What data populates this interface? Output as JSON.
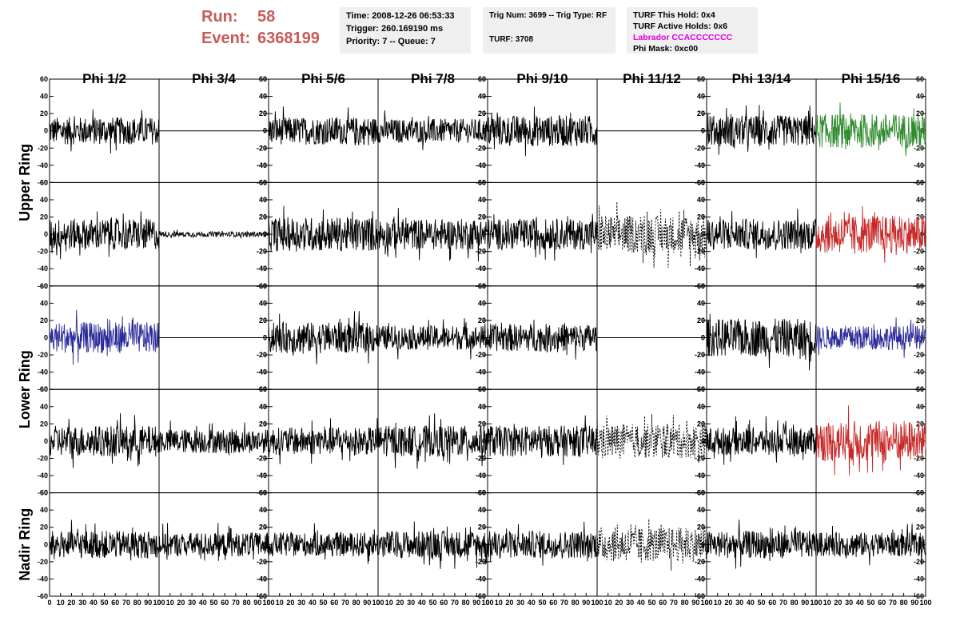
{
  "header": {
    "run_label": "Run:",
    "run_value": "58",
    "event_label": "Event:",
    "event_value": "6368199"
  },
  "info_time": {
    "time": "Time: 2008-12-26 06:53:33",
    "trigger": "Trigger: 260.169190 ms",
    "priority": "Priority: 7 -- Queue: 7"
  },
  "info_trig": {
    "trig": "Trig Num: 3699 -- Trig Type: RF",
    "turf": "TURF: 3708"
  },
  "info_turf": {
    "this_hold": "TURF This Hold: 0x4",
    "active_holds": "TURF Active Holds: 0x6",
    "labrador": "Labrador CCACCCCCCC",
    "phi_mask": "Phi Mask: 0xc00"
  },
  "colors": {
    "header_red": "#c85a5a",
    "labrador_magenta": "#e000e0",
    "trace_black": "#000000",
    "trace_green": "#2e8b2e",
    "trace_red": "#c82828",
    "trace_blue": "#2a2a9a"
  },
  "chart_data": {
    "type": "line",
    "columns": [
      "Phi 1/2",
      "Phi 3/4",
      "Phi 5/6",
      "Phi 7/8",
      "Phi 9/10",
      "Phi 11/12",
      "Phi 13/14",
      "Phi 15/16"
    ],
    "rings": [
      "Upper Ring",
      "Lower Ring",
      "Nadir Ring"
    ],
    "xlim": [
      0,
      100
    ],
    "ylim": [
      -60,
      60
    ],
    "x_ticks": [
      "0",
      "10",
      "20",
      "30",
      "40",
      "50",
      "60",
      "70",
      "80",
      "90",
      "100"
    ],
    "y_ticks": [
      "-60",
      "-40",
      "-20",
      "0",
      "20",
      "40",
      "60"
    ],
    "panel_rows": [
      {
        "ring": "Upper Ring",
        "traces": [
          {
            "color": "black",
            "amp": 16,
            "style": "solid"
          },
          {
            "color": "black",
            "amp": 0,
            "style": "solid"
          },
          {
            "color": "black",
            "amp": 16,
            "style": "solid"
          },
          {
            "color": "black",
            "amp": 14,
            "style": "solid"
          },
          {
            "color": "black",
            "amp": 18,
            "style": "solid"
          },
          {
            "color": "black",
            "amp": 0,
            "style": "solid"
          },
          {
            "color": "black",
            "amp": 18,
            "style": "solid"
          },
          {
            "color": "green",
            "amp": 20,
            "style": "solid"
          }
        ]
      },
      {
        "ring": "Upper Ring",
        "traces": [
          {
            "color": "black",
            "amp": 18,
            "style": "solid"
          },
          {
            "color": "black",
            "amp": 3,
            "style": "solid"
          },
          {
            "color": "black",
            "amp": 20,
            "style": "solid"
          },
          {
            "color": "black",
            "amp": 18,
            "style": "solid"
          },
          {
            "color": "black",
            "amp": 18,
            "style": "solid"
          },
          {
            "color": "black",
            "amp": 22,
            "style": "dotted"
          },
          {
            "color": "black",
            "amp": 18,
            "style": "solid"
          },
          {
            "color": "red",
            "amp": 22,
            "style": "solid"
          }
        ]
      },
      {
        "ring": "Lower Ring",
        "traces": [
          {
            "color": "blue",
            "amp": 18,
            "style": "solid"
          },
          {
            "color": "black",
            "amp": 0,
            "style": "solid"
          },
          {
            "color": "black",
            "amp": 18,
            "style": "solid"
          },
          {
            "color": "black",
            "amp": 14,
            "style": "solid"
          },
          {
            "color": "black",
            "amp": 16,
            "style": "solid"
          },
          {
            "color": "black",
            "amp": 0,
            "style": "solid"
          },
          {
            "color": "black",
            "amp": 22,
            "style": "solid"
          },
          {
            "color": "blue",
            "amp": 14,
            "style": "solid"
          }
        ]
      },
      {
        "ring": "Lower Ring",
        "traces": [
          {
            "color": "black",
            "amp": 18,
            "style": "solid"
          },
          {
            "color": "black",
            "amp": 14,
            "style": "solid"
          },
          {
            "color": "black",
            "amp": 16,
            "style": "solid"
          },
          {
            "color": "black",
            "amp": 18,
            "style": "solid"
          },
          {
            "color": "black",
            "amp": 18,
            "style": "solid"
          },
          {
            "color": "black",
            "amp": 20,
            "style": "dotted"
          },
          {
            "color": "black",
            "amp": 16,
            "style": "solid"
          },
          {
            "color": "red",
            "amp": 24,
            "style": "solid"
          }
        ]
      },
      {
        "ring": "Nadir Ring",
        "traces": [
          {
            "color": "black",
            "amp": 16,
            "style": "solid"
          },
          {
            "color": "black",
            "amp": 14,
            "style": "solid"
          },
          {
            "color": "black",
            "amp": 14,
            "style": "solid"
          },
          {
            "color": "black",
            "amp": 16,
            "style": "solid"
          },
          {
            "color": "black",
            "amp": 16,
            "style": "solid"
          },
          {
            "color": "black",
            "amp": 20,
            "style": "dotted"
          },
          {
            "color": "black",
            "amp": 16,
            "style": "solid"
          },
          {
            "color": "black",
            "amp": 14,
            "style": "solid"
          }
        ]
      }
    ]
  }
}
